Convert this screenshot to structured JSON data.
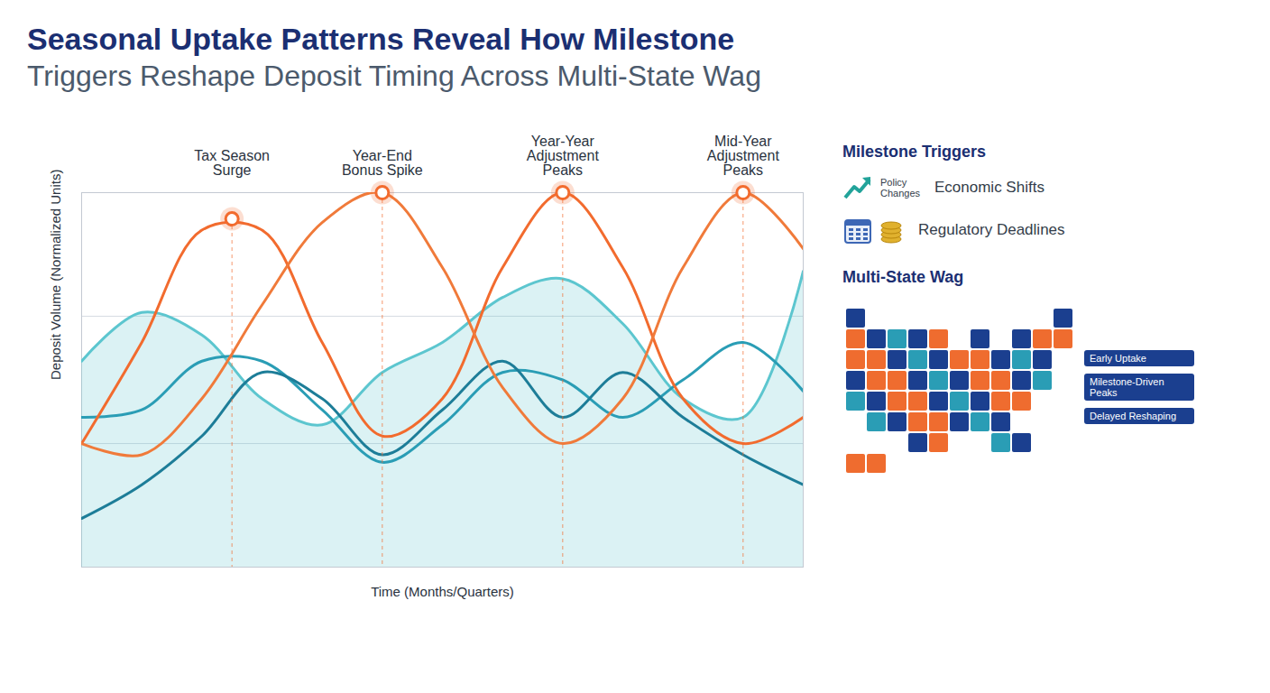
{
  "chart_data": {
    "type": "line",
    "title": "Seasonal Uptake Patterns Reveal How Milestone",
    "subtitle": "Triggers Reshape Deposit Timing Across Multi-State Wag",
    "x_label": "Time (Months/Quarters)",
    "y_label": "Deposit Volume (Normalized Units)",
    "x": [
      0,
      1,
      2,
      3,
      4,
      5,
      6,
      7,
      8,
      9,
      10,
      11,
      12
    ],
    "series": [
      {
        "color": "#5cc6cf",
        "type": "area",
        "values": [
          55,
          68,
          62,
          45,
          38,
          52,
          60,
          72,
          77,
          65,
          45,
          40,
          79
        ]
      },
      {
        "color": "#2a9db5",
        "values": [
          40,
          42,
          55,
          55,
          42,
          28,
          38,
          52,
          50,
          40,
          50,
          60,
          47
        ]
      },
      {
        "color": "#1d7d98",
        "values": [
          13,
          22,
          35,
          52,
          45,
          30,
          42,
          55,
          40,
          52,
          40,
          30,
          22
        ]
      },
      {
        "color": "#f26b2e",
        "values": [
          33,
          60,
          90,
          90,
          60,
          35,
          45,
          80,
          100,
          80,
          45,
          33,
          40
        ]
      },
      {
        "color": "#f07a3a",
        "values": [
          33,
          30,
          45,
          70,
          92,
          100,
          80,
          48,
          33,
          45,
          80,
          100,
          85
        ]
      }
    ],
    "xlim": [
      0,
      12
    ],
    "xticks": [],
    "ylim": [
      0,
      100
    ],
    "yticks": [
      0,
      33,
      67,
      100
    ],
    "grid": true,
    "tick_labels": false,
    "annotations": [
      {
        "text": "Tax Season Surge",
        "x": 2.5,
        "y": 93
      },
      {
        "text": "Year-End Bonus Spike",
        "x": 5,
        "y": 100
      },
      {
        "text": "Year-Year Adjustment Peaks",
        "x": 8,
        "y": 100
      },
      {
        "text": "Mid-Year Adjustment Peaks",
        "x": 11,
        "y": 100
      }
    ]
  },
  "side_panel": {
    "triggers_title": "Milestone Triggers",
    "triggers": [
      "Policy Changes",
      "Economic Shifts",
      "Regulatory Deadlines"
    ],
    "map_title": "Multi-State Wag",
    "map_legend": [
      "Early Uptake",
      "Milestone-Driven Peaks",
      "Delayed Reshaping"
    ]
  }
}
